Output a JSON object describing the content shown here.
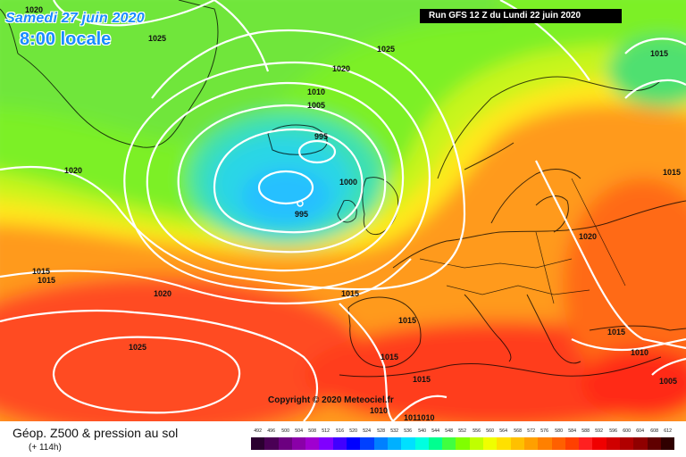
{
  "header": {
    "date_label": "Samedi 27 juin 2020",
    "time_label": "8:00 locale",
    "run_label": "Run GFS 12 Z du Lundi 22 juin 2020"
  },
  "copyright": "Copyright © 2020 Meteociel.fr",
  "map": {
    "pressure_labels": [
      "1025",
      "1025",
      "1020",
      "1010",
      "1005",
      "995",
      "1020",
      "1000",
      "995",
      "1015",
      "1015",
      "1020",
      "1015",
      "1015",
      "1025",
      "1015",
      "1010",
      "1011010",
      "1015",
      "1020",
      "1015",
      "1010",
      "1005",
      "1020",
      "1015"
    ]
  },
  "legend": {
    "title": "Géop. Z500 & pression au sol",
    "subtitle": "(+ 114h)",
    "scale": [
      {
        "value": "492",
        "color": "#2b0030"
      },
      {
        "value": "496",
        "color": "#4a0055"
      },
      {
        "value": "500",
        "color": "#6c0080"
      },
      {
        "value": "504",
        "color": "#8a00a8"
      },
      {
        "value": "508",
        "color": "#a000d0"
      },
      {
        "value": "512",
        "color": "#8000ff"
      },
      {
        "value": "516",
        "color": "#4000ff"
      },
      {
        "value": "520",
        "color": "#0000ff"
      },
      {
        "value": "524",
        "color": "#0040ff"
      },
      {
        "value": "528",
        "color": "#0080ff"
      },
      {
        "value": "532",
        "color": "#00b0ff"
      },
      {
        "value": "536",
        "color": "#00e0ff"
      },
      {
        "value": "540",
        "color": "#00ffe0"
      },
      {
        "value": "544",
        "color": "#00ff90"
      },
      {
        "value": "548",
        "color": "#40ff40"
      },
      {
        "value": "552",
        "color": "#80ff00"
      },
      {
        "value": "556",
        "color": "#c0ff00"
      },
      {
        "value": "560",
        "color": "#f0ff00"
      },
      {
        "value": "564",
        "color": "#ffe000"
      },
      {
        "value": "568",
        "color": "#ffc000"
      },
      {
        "value": "572",
        "color": "#ffa000"
      },
      {
        "value": "576",
        "color": "#ff8000"
      },
      {
        "value": "580",
        "color": "#ff6000"
      },
      {
        "value": "584",
        "color": "#ff4000"
      },
      {
        "value": "588",
        "color": "#ff2020"
      },
      {
        "value": "592",
        "color": "#f00000"
      },
      {
        "value": "596",
        "color": "#d00000"
      },
      {
        "value": "600",
        "color": "#b00000"
      },
      {
        "value": "604",
        "color": "#900000"
      },
      {
        "value": "608",
        "color": "#600000"
      },
      {
        "value": "612",
        "color": "#300000"
      }
    ]
  }
}
